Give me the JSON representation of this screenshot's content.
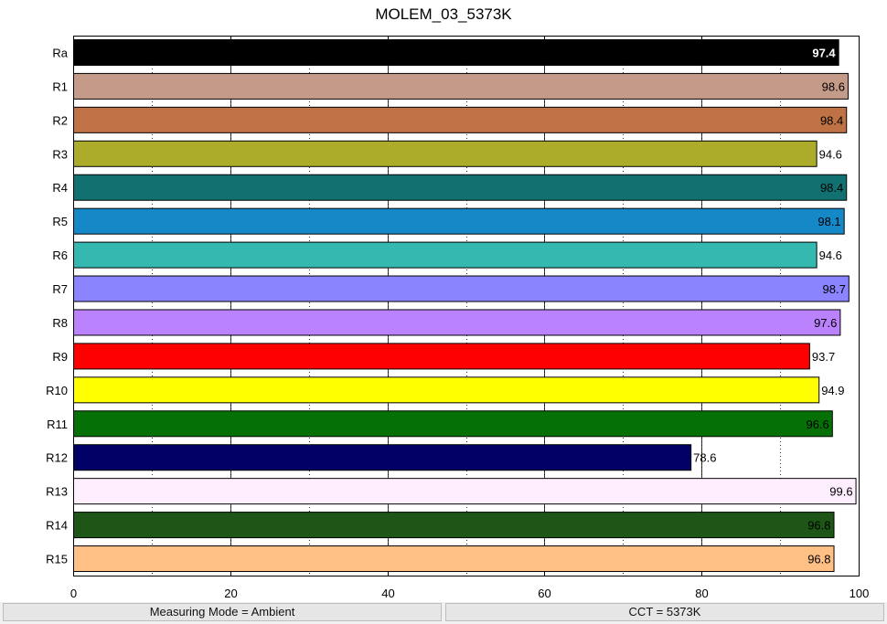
{
  "chart_data": {
    "type": "bar",
    "orientation": "horizontal",
    "title": "MOLEM_03_5373K",
    "xlabel": "",
    "ylabel": "",
    "xlim": [
      0,
      100
    ],
    "x_ticks": [
      0,
      20,
      40,
      60,
      80,
      100
    ],
    "grid": "vertical dotted",
    "categories": [
      "Ra",
      "R1",
      "R2",
      "R3",
      "R4",
      "R5",
      "R6",
      "R7",
      "R8",
      "R9",
      "R10",
      "R11",
      "R12",
      "R13",
      "R14",
      "R15"
    ],
    "values": [
      97.4,
      98.6,
      98.4,
      94.6,
      98.4,
      98.1,
      94.6,
      98.7,
      97.6,
      93.7,
      94.9,
      96.6,
      78.6,
      99.6,
      96.8,
      96.8
    ],
    "value_labels": [
      "97.4",
      "98.6",
      "98.4",
      "94.6",
      "98.4",
      "98.1",
      "94.6",
      "98.7",
      "97.6",
      "93.7",
      "94.9",
      "96.6",
      "78.6",
      "99.6",
      "96.8",
      "96.8"
    ],
    "colors": [
      "#000000",
      "#c49a88",
      "#be7245",
      "#adac2a",
      "#117170",
      "#1588c8",
      "#35b8b0",
      "#8a84fe",
      "#bb82fe",
      "#fe0000",
      "#ffff00",
      "#057006",
      "#000066",
      "#ffeefe",
      "#1d5617",
      "#ffc086"
    ]
  },
  "status_bar": {
    "measuring_mode": "Measuring Mode = Ambient",
    "cct": "CCT = 5373K"
  }
}
